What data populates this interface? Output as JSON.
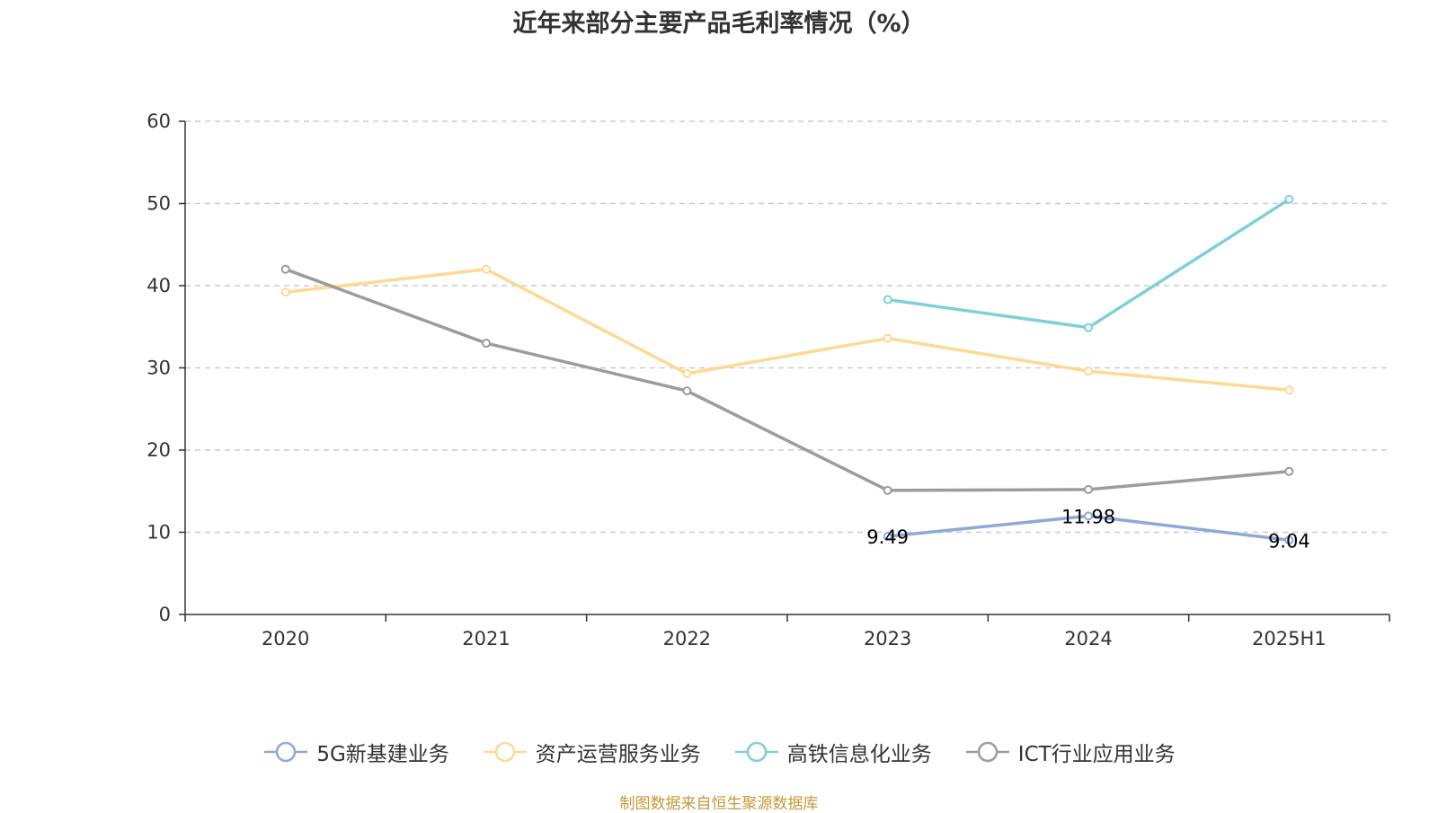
{
  "chart_data": {
    "type": "line",
    "title": "近年来部分主要产品毛利率情况（%）",
    "categories": [
      "2020",
      "2021",
      "2022",
      "2023",
      "2024",
      "2025H1"
    ],
    "ylim": [
      0,
      60
    ],
    "yticks": [
      0,
      10,
      20,
      30,
      40,
      50,
      60
    ],
    "grid": true,
    "legend_position": "bottom",
    "series": [
      {
        "name": "5G新基建业务",
        "color": "#8ea9d8",
        "values": [
          null,
          null,
          null,
          9.49,
          11.98,
          9.04
        ],
        "labels": [
          null,
          null,
          null,
          "9.49",
          "11.98",
          "9.04"
        ]
      },
      {
        "name": "资产运营服务业务",
        "color": "#fdd995",
        "values": [
          39.2,
          42.0,
          29.3,
          33.6,
          29.6,
          27.3
        ]
      },
      {
        "name": "高铁信息化业务",
        "color": "#7fd0d4",
        "values": [
          null,
          null,
          null,
          38.3,
          34.9,
          50.5
        ]
      },
      {
        "name": "ICT行业应用业务",
        "color": "#9c9c9c",
        "values": [
          42.0,
          33.0,
          27.2,
          15.1,
          15.2,
          17.4
        ]
      }
    ]
  },
  "source_note": "制图数据来自恒生聚源数据库"
}
